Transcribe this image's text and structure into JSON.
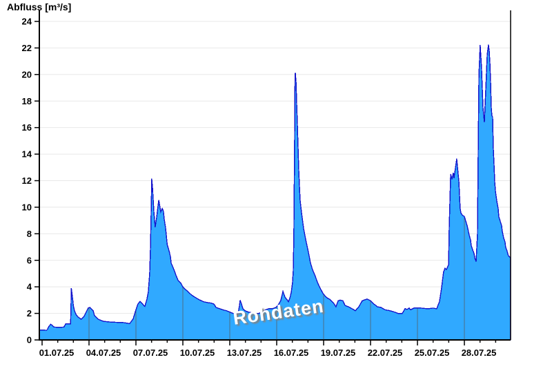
{
  "header": {
    "axis_title": "Abfluss [m³/s]"
  },
  "chart_data": {
    "type": "area",
    "title": "Abfluss [m³/s]",
    "xlabel": "",
    "ylabel": "Abfluss [m³/s]",
    "y_unit": "m³/s",
    "ylim": [
      0,
      24
    ],
    "y_ticks": [
      0,
      2,
      4,
      6,
      8,
      10,
      12,
      14,
      16,
      18,
      20,
      22,
      24
    ],
    "x_days_domain": [
      -0.18,
      29.95
    ],
    "x_minor_tick_day_range": [
      0,
      29
    ],
    "x_major_tick_step_days": 3,
    "x_major_ticks": [
      {
        "day": 0,
        "label": "01.07.25"
      },
      {
        "day": 3,
        "label": "04.07.25"
      },
      {
        "day": 6,
        "label": "07.07.25"
      },
      {
        "day": 9,
        "label": "10.07.25"
      },
      {
        "day": 12,
        "label": "13.07.25"
      },
      {
        "day": 15,
        "label": "16.07.25"
      },
      {
        "day": 18,
        "label": "19.07.25"
      },
      {
        "day": 21,
        "label": "22.07.25"
      },
      {
        "day": 24,
        "label": "25.07.25"
      },
      {
        "day": 27,
        "label": "28.07.25"
      }
    ],
    "grid": {
      "horizontal": true,
      "vertical_major_over_area": true,
      "legend": "none"
    },
    "watermark_text": "Rohdaten",
    "colors": {
      "area_fill": "#30A9FF",
      "area_stroke": "#1414CC",
      "grid_horizontal": "#E8E8E8",
      "grid_vertical": "#4E6E86",
      "axis": "#000000",
      "watermark_text": "#FFFFFF",
      "watermark_shadow": "#828282"
    },
    "series": [
      {
        "name": "Rohdaten",
        "unit": "m³/s",
        "x_unit": "days since 01.07.25 00:00",
        "points": [
          [
            -0.18,
            0.75
          ],
          [
            0.1,
            0.75
          ],
          [
            0.28,
            0.72
          ],
          [
            0.35,
            0.8
          ],
          [
            0.42,
            1.0
          ],
          [
            0.55,
            1.18
          ],
          [
            0.65,
            1.1
          ],
          [
            0.76,
            0.97
          ],
          [
            1.1,
            0.95
          ],
          [
            1.4,
            0.97
          ],
          [
            1.5,
            1.2
          ],
          [
            1.82,
            1.22
          ],
          [
            1.85,
            2.6
          ],
          [
            1.87,
            3.9
          ],
          [
            1.9,
            3.6
          ],
          [
            1.94,
            3.23
          ],
          [
            2.0,
            2.6
          ],
          [
            2.07,
            2.2
          ],
          [
            2.16,
            1.93
          ],
          [
            2.27,
            1.76
          ],
          [
            2.5,
            1.55
          ],
          [
            2.68,
            1.76
          ],
          [
            2.82,
            2.1
          ],
          [
            2.95,
            2.4
          ],
          [
            3.05,
            2.45
          ],
          [
            3.27,
            2.19
          ],
          [
            3.35,
            1.84
          ],
          [
            3.57,
            1.58
          ],
          [
            3.71,
            1.5
          ],
          [
            3.93,
            1.4
          ],
          [
            4.37,
            1.35
          ],
          [
            4.81,
            1.32
          ],
          [
            5.25,
            1.3
          ],
          [
            5.6,
            1.23
          ],
          [
            5.82,
            1.58
          ],
          [
            6.0,
            2.27
          ],
          [
            6.13,
            2.7
          ],
          [
            6.26,
            2.9
          ],
          [
            6.4,
            2.75
          ],
          [
            6.49,
            2.62
          ],
          [
            6.57,
            2.53
          ],
          [
            6.7,
            3.06
          ],
          [
            6.79,
            3.6
          ],
          [
            6.88,
            5.0
          ],
          [
            6.93,
            7.0
          ],
          [
            6.97,
            9.5
          ],
          [
            7.01,
            12.15
          ],
          [
            7.06,
            11.5
          ],
          [
            7.15,
            9.6
          ],
          [
            7.23,
            8.5
          ],
          [
            7.32,
            9.2
          ],
          [
            7.46,
            10.55
          ],
          [
            7.59,
            9.65
          ],
          [
            7.68,
            9.9
          ],
          [
            7.76,
            9.7
          ],
          [
            7.81,
            9.1
          ],
          [
            7.9,
            8.4
          ],
          [
            8.0,
            7.2
          ],
          [
            8.12,
            6.7
          ],
          [
            8.21,
            6.26
          ],
          [
            8.25,
            5.8
          ],
          [
            8.43,
            5.3
          ],
          [
            8.56,
            4.88
          ],
          [
            8.69,
            4.5
          ],
          [
            8.87,
            4.27
          ],
          [
            9.0,
            4.0
          ],
          [
            9.22,
            3.75
          ],
          [
            9.44,
            3.5
          ],
          [
            9.66,
            3.3
          ],
          [
            10.01,
            3.05
          ],
          [
            10.32,
            2.88
          ],
          [
            10.63,
            2.8
          ],
          [
            10.81,
            2.78
          ],
          [
            10.99,
            2.7
          ],
          [
            11.12,
            2.45
          ],
          [
            11.34,
            2.36
          ],
          [
            11.56,
            2.27
          ],
          [
            11.78,
            2.2
          ],
          [
            12.0,
            2.1
          ],
          [
            12.22,
            2.0
          ],
          [
            12.4,
            1.93
          ],
          [
            12.53,
            2.0
          ],
          [
            12.62,
            2.6
          ],
          [
            12.66,
            3.0
          ],
          [
            12.75,
            2.7
          ],
          [
            12.84,
            2.36
          ],
          [
            12.97,
            2.2
          ],
          [
            13.19,
            2.1
          ],
          [
            13.41,
            2.05
          ],
          [
            13.63,
            2.0
          ],
          [
            13.85,
            2.0
          ],
          [
            14.07,
            2.1
          ],
          [
            14.29,
            2.27
          ],
          [
            14.51,
            2.36
          ],
          [
            14.73,
            2.36
          ],
          [
            14.96,
            2.45
          ],
          [
            15.09,
            2.62
          ],
          [
            15.26,
            2.97
          ],
          [
            15.4,
            3.66
          ],
          [
            15.53,
            3.23
          ],
          [
            15.71,
            2.95
          ],
          [
            15.75,
            2.88
          ],
          [
            15.84,
            3.14
          ],
          [
            15.93,
            3.58
          ],
          [
            16.01,
            4.3
          ],
          [
            16.06,
            5.2
          ],
          [
            16.1,
            8.0
          ],
          [
            16.15,
            16.0
          ],
          [
            16.17,
            19.5
          ],
          [
            16.19,
            20.15
          ],
          [
            16.24,
            19.4
          ],
          [
            16.28,
            17.8
          ],
          [
            16.32,
            16.4
          ],
          [
            16.37,
            14.3
          ],
          [
            16.41,
            12.8
          ],
          [
            16.45,
            11.7
          ],
          [
            16.5,
            10.5
          ],
          [
            16.59,
            9.6
          ],
          [
            16.63,
            9.2
          ],
          [
            16.72,
            8.4
          ],
          [
            16.85,
            7.6
          ],
          [
            17.03,
            6.6
          ],
          [
            17.16,
            5.8
          ],
          [
            17.29,
            5.3
          ],
          [
            17.47,
            4.8
          ],
          [
            17.6,
            4.36
          ],
          [
            17.74,
            4.0
          ],
          [
            17.96,
            3.5
          ],
          [
            18.18,
            3.2
          ],
          [
            18.4,
            3.05
          ],
          [
            18.62,
            2.8
          ],
          [
            18.79,
            2.5
          ],
          [
            18.93,
            2.95
          ],
          [
            19.06,
            3.0
          ],
          [
            19.23,
            2.95
          ],
          [
            19.37,
            2.6
          ],
          [
            19.59,
            2.5
          ],
          [
            19.81,
            2.36
          ],
          [
            20.03,
            2.2
          ],
          [
            20.25,
            2.5
          ],
          [
            20.47,
            2.95
          ],
          [
            20.78,
            3.08
          ],
          [
            21.0,
            2.95
          ],
          [
            21.22,
            2.7
          ],
          [
            21.44,
            2.5
          ],
          [
            21.66,
            2.45
          ],
          [
            21.93,
            2.27
          ],
          [
            22.24,
            2.2
          ],
          [
            22.54,
            2.1
          ],
          [
            22.76,
            2.0
          ],
          [
            23.03,
            2.0
          ],
          [
            23.21,
            2.36
          ],
          [
            23.34,
            2.3
          ],
          [
            23.47,
            2.4
          ],
          [
            23.56,
            2.27
          ],
          [
            23.78,
            2.4
          ],
          [
            24.22,
            2.4
          ],
          [
            24.66,
            2.35
          ],
          [
            25.01,
            2.4
          ],
          [
            25.23,
            2.35
          ],
          [
            25.41,
            2.9
          ],
          [
            25.54,
            3.9
          ],
          [
            25.63,
            4.79
          ],
          [
            25.67,
            5.14
          ],
          [
            25.76,
            5.4
          ],
          [
            25.85,
            5.3
          ],
          [
            25.99,
            5.66
          ],
          [
            26.03,
            8.4
          ],
          [
            26.12,
            12.5
          ],
          [
            26.21,
            12.1
          ],
          [
            26.29,
            12.6
          ],
          [
            26.34,
            12.2
          ],
          [
            26.43,
            13.0
          ],
          [
            26.51,
            13.65
          ],
          [
            26.65,
            11.9
          ],
          [
            26.73,
            9.9
          ],
          [
            26.78,
            9.56
          ],
          [
            26.87,
            9.4
          ],
          [
            27.0,
            9.3
          ],
          [
            27.09,
            8.96
          ],
          [
            27.18,
            8.6
          ],
          [
            27.31,
            7.9
          ],
          [
            27.4,
            7.5
          ],
          [
            27.44,
            7.1
          ],
          [
            27.53,
            6.8
          ],
          [
            27.62,
            6.5
          ],
          [
            27.66,
            6.2
          ],
          [
            27.75,
            5.9
          ],
          [
            27.84,
            8.0
          ],
          [
            27.88,
            14.0
          ],
          [
            27.93,
            20.0
          ],
          [
            28.01,
            22.24
          ],
          [
            28.1,
            20.5
          ],
          [
            28.19,
            17.5
          ],
          [
            28.28,
            16.4
          ],
          [
            28.37,
            19.0
          ],
          [
            28.46,
            21.5
          ],
          [
            28.54,
            22.24
          ],
          [
            28.59,
            21.8
          ],
          [
            28.63,
            20.9
          ],
          [
            28.68,
            19.3
          ],
          [
            28.72,
            17.5
          ],
          [
            28.76,
            16.9
          ],
          [
            28.81,
            16.8
          ],
          [
            28.85,
            14.5
          ],
          [
            28.9,
            13.1
          ],
          [
            28.94,
            11.9
          ],
          [
            28.99,
            11.2
          ],
          [
            29.07,
            10.5
          ],
          [
            29.16,
            9.9
          ],
          [
            29.2,
            9.3
          ],
          [
            29.38,
            8.6
          ],
          [
            29.42,
            8.2
          ],
          [
            29.51,
            7.7
          ],
          [
            29.6,
            7.4
          ],
          [
            29.64,
            7.0
          ],
          [
            29.73,
            6.7
          ],
          [
            29.81,
            6.35
          ],
          [
            29.95,
            6.2
          ]
        ]
      }
    ]
  }
}
